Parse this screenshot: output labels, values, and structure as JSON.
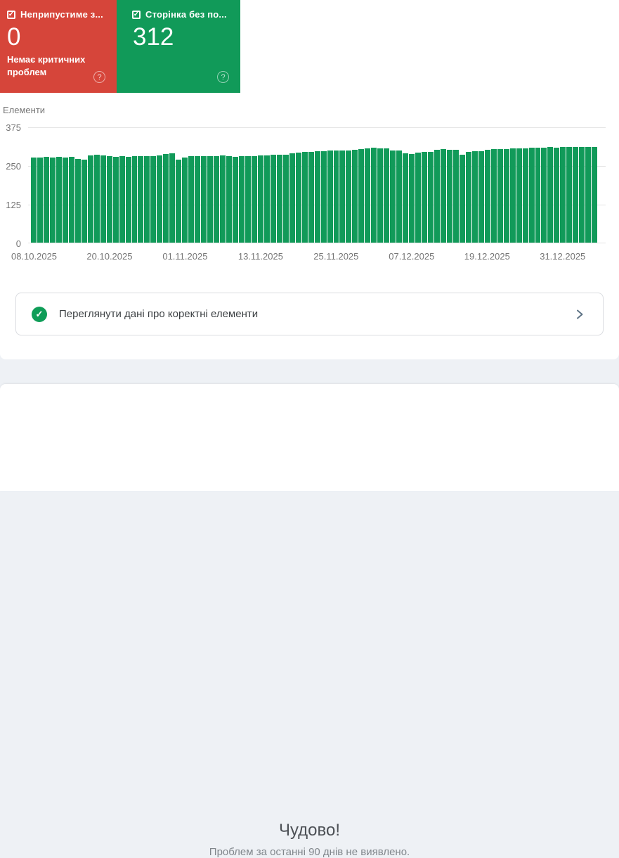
{
  "cards": {
    "error": {
      "label": "Неприпустиме з...",
      "value": "0",
      "description": "Немає критичних проблем",
      "color": "#d6453a",
      "checked": true
    },
    "valid": {
      "label": "Сторінка без по...",
      "value": "312",
      "color": "#119a59",
      "checked": true
    }
  },
  "icons": {
    "checkbox_check": "✓",
    "help": "?",
    "banner_check": "✓"
  },
  "chart_data": {
    "type": "bar",
    "title": "Елементи",
    "xlabel": "",
    "ylabel": "Елементи",
    "ylim": [
      0,
      375
    ],
    "yticks": [
      "375",
      "250",
      "125",
      "0"
    ],
    "grid": true,
    "legend": false,
    "bar_color": "#119a59",
    "xticks": [
      "08.10.2025",
      "20.10.2025",
      "01.11.2025",
      "13.11.2025",
      "25.11.2025",
      "07.12.2025",
      "19.12.2025",
      "31.12.2025"
    ],
    "xtick_indices": [
      0,
      12,
      24,
      36,
      48,
      60,
      72,
      84
    ],
    "values": [
      277,
      277,
      278,
      277,
      278,
      277,
      278,
      272,
      270,
      284,
      285,
      284,
      281,
      280,
      281,
      280,
      281,
      282,
      281,
      282,
      283,
      288,
      290,
      270,
      277,
      281,
      282,
      281,
      282,
      282,
      283,
      281,
      280,
      281,
      282,
      281,
      283,
      284,
      285,
      285,
      286,
      290,
      292,
      294,
      296,
      298,
      298,
      299,
      300,
      299,
      300,
      301,
      305,
      307,
      308,
      307,
      306,
      300,
      299,
      290,
      289,
      293,
      294,
      295,
      303,
      304,
      303,
      301,
      286,
      296,
      297,
      298,
      303,
      304,
      305,
      305,
      306,
      307,
      307,
      308,
      308,
      309,
      310,
      309,
      310,
      310,
      311,
      310,
      311,
      312
    ]
  },
  "banner": {
    "label": "Переглянути дані про коректні елементи"
  },
  "footer": {
    "title": "Чудово!",
    "subtitle": "Проблем за останні 90 днів не виявлено."
  }
}
